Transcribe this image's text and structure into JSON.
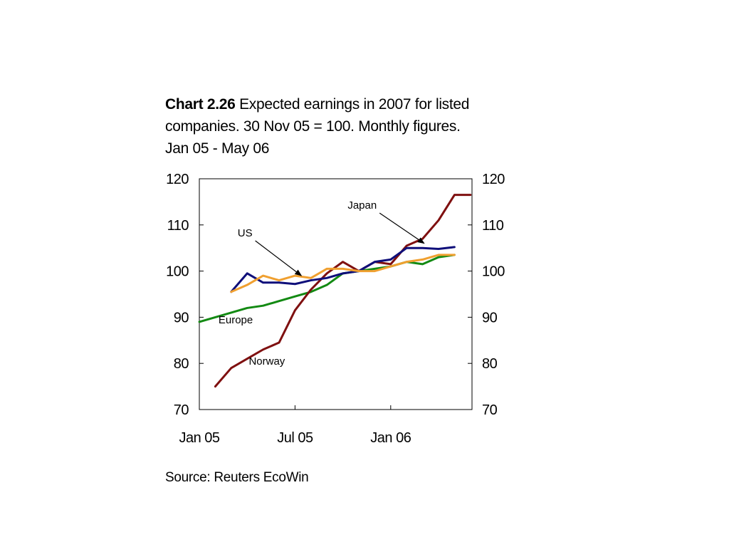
{
  "title": {
    "number": "Chart 2.26",
    "line1": "Expected earnings in 2007 for listed",
    "line2": "companies. 30 Nov 05 = 100. Monthly figures.",
    "line3": "Jan 05 - May 06"
  },
  "source": "Source: Reuters EcoWin",
  "chart_data": {
    "type": "line",
    "x": [
      "Jan 05",
      "Feb 05",
      "Mar 05",
      "Apr 05",
      "May 05",
      "Jun 05",
      "Jul 05",
      "Aug 05",
      "Sep 05",
      "Oct 05",
      "Nov 05",
      "Dec 05",
      "Jan 06",
      "Feb 06",
      "Mar 06",
      "Apr 06",
      "May 06"
    ],
    "x_ticks": [
      "Jan 05",
      "Jul 05",
      "Jan 06"
    ],
    "ylim": [
      70,
      120
    ],
    "y_ticks": [
      70,
      80,
      90,
      100,
      110,
      120
    ],
    "y_axis_right": true,
    "grid": false,
    "series": [
      {
        "name": "Europe",
        "color": "#138a13",
        "x": [
          0,
          1,
          2,
          3,
          4,
          5,
          6,
          7,
          8,
          9,
          10,
          11,
          12,
          13,
          14,
          15,
          16
        ],
        "values": [
          89,
          90,
          91,
          92,
          92.5,
          93.5,
          94.5,
          95.5,
          97,
          99.5,
          100,
          100.5,
          101,
          102,
          101.5,
          103,
          103.5
        ]
      },
      {
        "name": "Norway",
        "color": "#7f1010",
        "x": [
          1,
          2,
          3,
          4,
          5,
          6,
          7,
          8,
          9,
          10,
          11,
          12,
          13,
          14,
          15,
          16,
          17
        ],
        "values": [
          75,
          79,
          81,
          83,
          84.5,
          91.5,
          96,
          99.5,
          102,
          100,
          102,
          101.5,
          105.5,
          107,
          111,
          116.5,
          116.5
        ]
      },
      {
        "name": "US",
        "color": "#0f0f7a",
        "x": [
          2,
          3,
          4,
          5,
          6,
          7,
          8,
          9,
          10,
          11,
          12,
          13,
          14,
          15,
          16
        ],
        "values": [
          95.5,
          99.5,
          97.5,
          97.5,
          97.2,
          98,
          98.5,
          99.5,
          100,
          102,
          102.5,
          105,
          105,
          104.8,
          105.2
        ]
      },
      {
        "name": "Japan",
        "color": "#f0a030",
        "x": [
          2,
          3,
          4,
          5,
          6,
          7,
          8,
          9,
          10,
          11,
          12,
          13,
          14,
          15,
          16
        ],
        "values": [
          95.5,
          97,
          99,
          98,
          99,
          98.5,
          100.5,
          100.5,
          100,
          100,
          101,
          102,
          102.5,
          103.5,
          103.5
        ]
      }
    ],
    "annotations": [
      {
        "text": "Japan",
        "label_x": 9.3,
        "label_y": 113.5,
        "arrow_to_x": 14.1,
        "arrow_to_y": 106
      },
      {
        "text": "US",
        "label_x": 2.4,
        "label_y": 107.5,
        "arrow_to_x": 6.4,
        "arrow_to_y": 99
      },
      {
        "text": "Europe",
        "label_x": 1.2,
        "label_y": 88.7
      },
      {
        "text": "Norway",
        "label_x": 3.1,
        "label_y": 79.7
      }
    ]
  }
}
